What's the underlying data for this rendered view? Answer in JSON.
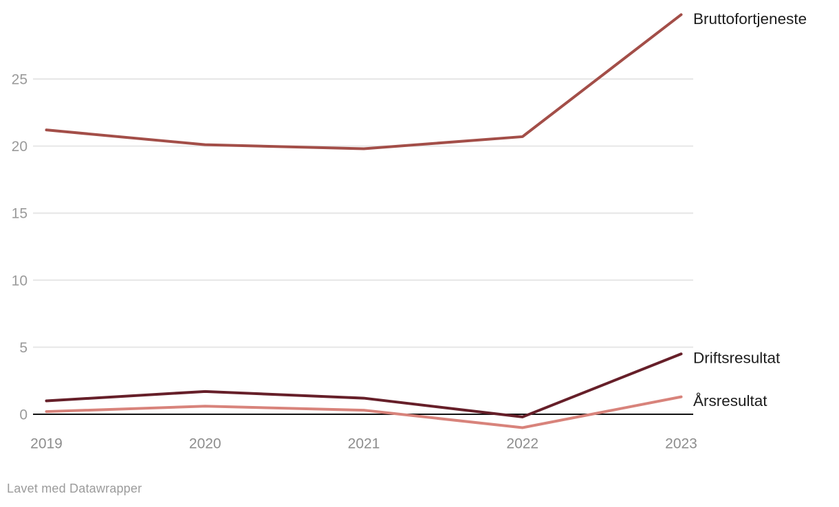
{
  "chart_data": {
    "type": "line",
    "x": [
      "2019",
      "2020",
      "2021",
      "2022",
      "2023"
    ],
    "series": [
      {
        "name": "Bruttofortjeneste",
        "color": "#a34e48",
        "values": [
          21.2,
          20.1,
          19.8,
          20.7,
          29.8
        ]
      },
      {
        "name": "Driftsresultat",
        "color": "#661f29",
        "values": [
          1.0,
          1.7,
          1.2,
          -0.2,
          4.5
        ]
      },
      {
        "name": "Årsresultat",
        "color": "#d8837b",
        "values": [
          0.2,
          0.6,
          0.3,
          -1.0,
          1.3
        ]
      }
    ],
    "y_ticks": [
      0,
      5,
      10,
      15,
      20,
      25
    ],
    "ylim": [
      -1.2,
      30
    ],
    "title": "",
    "xlabel": "",
    "ylabel": "",
    "grid": "horizontal",
    "legend_position": "direct-labels-right",
    "colors": {
      "gridline": "#e6e6e6",
      "zero_line": "#111111",
      "y_tick_text": "#9a9a9a",
      "x_tick_text": "#8d8d8d",
      "series_label_text": "#1d1d1d"
    }
  },
  "attribution": {
    "text": "Lavet med Datawrapper"
  }
}
